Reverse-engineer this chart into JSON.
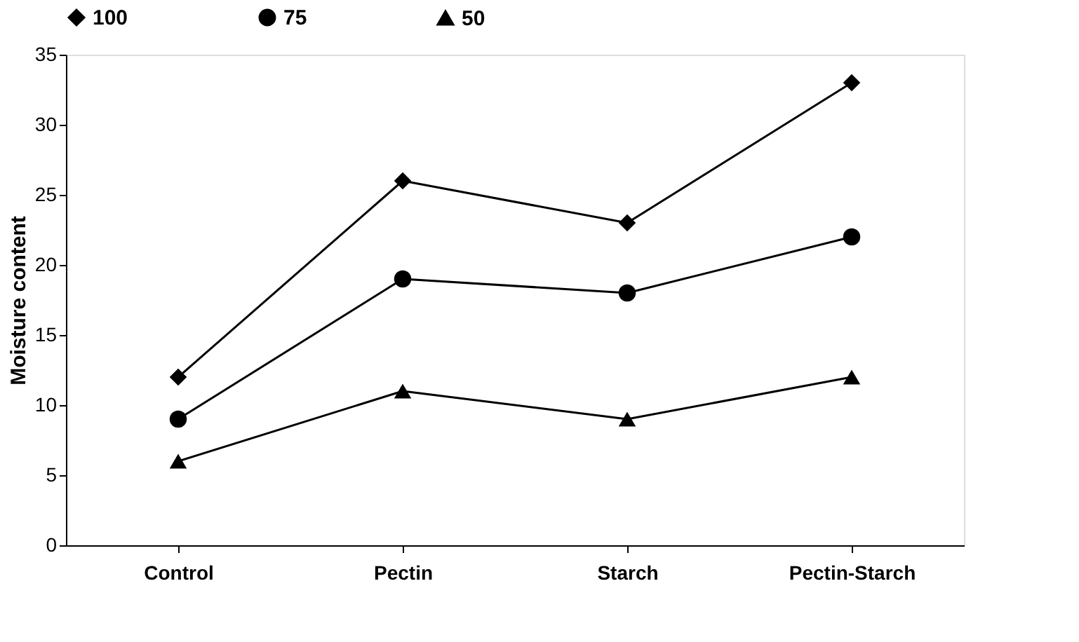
{
  "chart_data": {
    "type": "line",
    "ylabel": "Moisture content",
    "categories": [
      "Control",
      "Pectin",
      "Starch",
      "Pectin-Starch"
    ],
    "series": [
      {
        "name": "100",
        "color": "#000000",
        "marker": "diamond",
        "values": [
          12,
          26,
          23,
          33
        ]
      },
      {
        "name": "75",
        "color": "#000000",
        "marker": "circle",
        "values": [
          9,
          19,
          18,
          22
        ]
      },
      {
        "name": "50",
        "color": "#000000",
        "marker": "triangle",
        "values": [
          6,
          11,
          9,
          12
        ]
      }
    ],
    "ylim": [
      0,
      35
    ],
    "yticks": [
      0,
      5,
      10,
      15,
      20,
      25,
      30,
      35
    ],
    "grid": false,
    "legend": "top",
    "line_style": "solid"
  }
}
